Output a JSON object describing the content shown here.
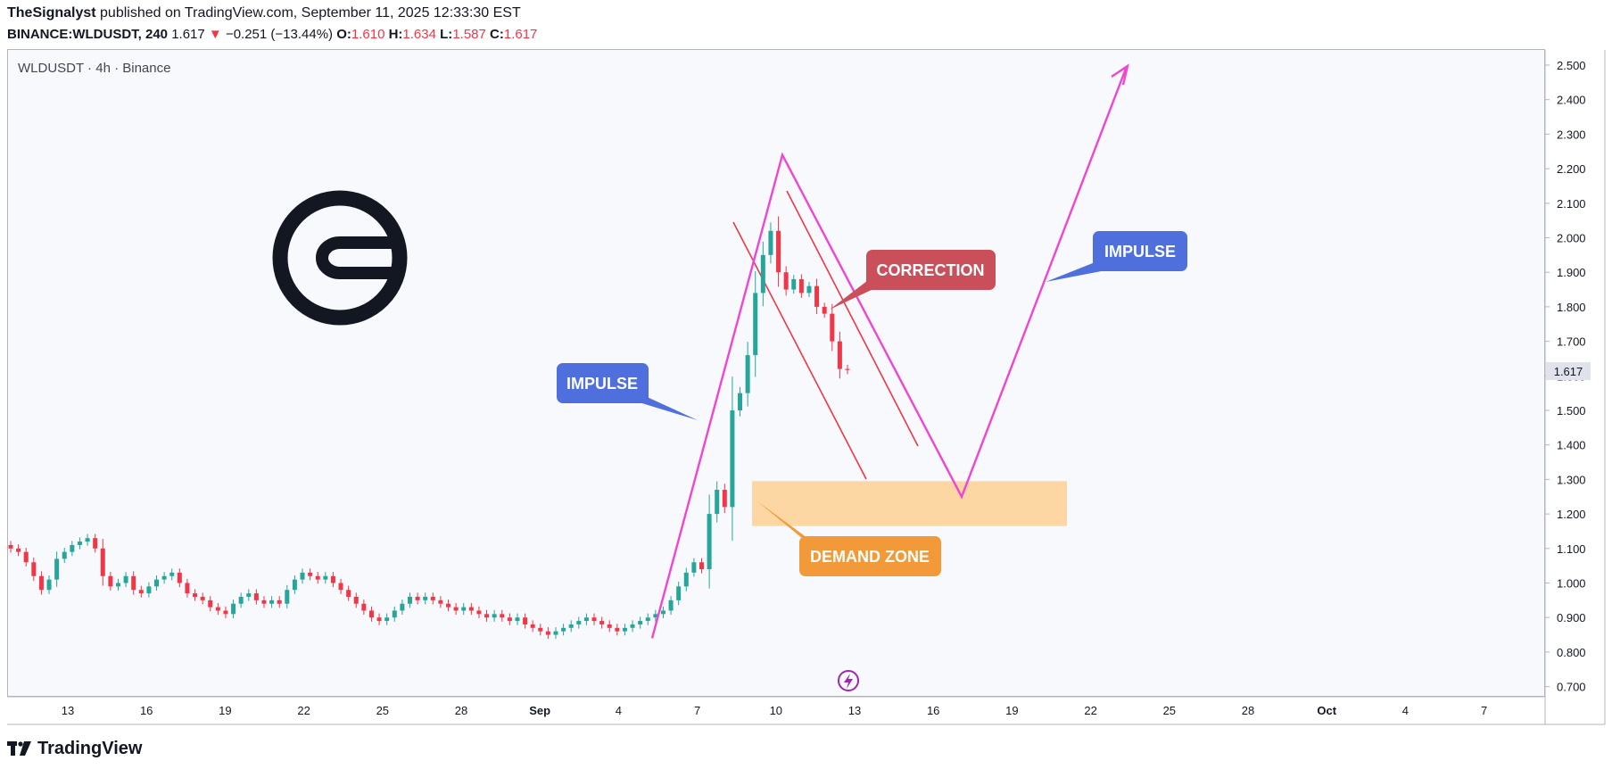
{
  "header": {
    "author": "TheSignalyst",
    "published": "published on TradingView.com, September 11, 2025 12:33:30 EST",
    "symbol_line": "BINANCE:WLDUSDT, 240",
    "last": "1.617",
    "arrow": "▼",
    "change": "−0.251 (−13.44%)",
    "o_label": "O:",
    "o": "1.610",
    "h_label": "H:",
    "h": "1.634",
    "l_label": "L:",
    "l": "1.587",
    "c_label": "C:",
    "c": "1.617"
  },
  "chart_symbol": "WLDUSDT · 4h · Binance",
  "footer": {
    "brand": "TradingView"
  },
  "colors": {
    "up": "#26a69a",
    "down": "#f23645",
    "impulse_line": "#ef45d5",
    "channel": "#f23645",
    "demand_zone": "#fcd39a",
    "impulse_label": "#4f6fdc",
    "correction_label": "#c9505a",
    "demand_label": "#f29a3a"
  },
  "chart_data": {
    "type": "candlestick",
    "ylim": [
      0.7,
      2.52
    ],
    "yticks": [
      "2.500",
      "2.400",
      "2.300",
      "2.200",
      "2.100",
      "2.000",
      "1.900",
      "1.800",
      "1.700",
      "1.600",
      "1.500",
      "1.400",
      "1.300",
      "1.200",
      "1.100",
      "1.000",
      "0.900",
      "0.800",
      "0.700"
    ],
    "xticks": [
      "13",
      "16",
      "19",
      "22",
      "25",
      "28",
      "Sep",
      "4",
      "7",
      "10",
      "13",
      "16",
      "19",
      "22",
      "25",
      "28",
      "Oct",
      "4",
      "7"
    ],
    "last_price_label": "1.617",
    "series": [
      {
        "values": [
          1.1,
          1.09,
          1.06,
          1.02,
          0.98,
          1.01,
          1.07,
          1.09,
          1.11,
          1.12,
          1.13,
          1.1,
          1.02,
          0.99,
          1.0,
          1.02,
          0.98,
          0.97,
          0.99,
          1.01,
          1.02,
          1.03,
          1.0,
          0.97,
          0.96,
          0.95,
          0.93,
          0.92,
          0.91,
          0.94,
          0.96,
          0.97,
          0.95,
          0.94,
          0.95,
          0.94,
          0.98,
          1.01,
          1.03,
          1.02,
          1.01,
          1.02,
          1.0,
          0.98,
          0.96,
          0.94,
          0.92,
          0.9,
          0.89,
          0.9,
          0.92,
          0.94,
          0.96,
          0.95,
          0.96,
          0.95,
          0.94,
          0.93,
          0.92,
          0.93,
          0.92,
          0.91,
          0.9,
          0.91,
          0.9,
          0.89,
          0.9,
          0.88,
          0.87,
          0.86,
          0.85,
          0.86,
          0.87,
          0.88,
          0.89,
          0.9,
          0.89,
          0.88,
          0.87,
          0.86,
          0.87,
          0.88,
          0.89,
          0.9,
          0.91,
          0.92,
          0.95,
          0.99,
          1.03,
          1.06,
          1.04,
          1.2,
          1.27,
          1.22,
          1.5,
          1.55,
          1.66,
          1.84,
          1.95,
          2.02,
          1.9,
          1.85,
          1.88,
          1.84,
          1.86,
          1.8,
          1.78,
          1.7,
          1.62,
          1.617
        ]
      }
    ],
    "annotations": [
      {
        "label": "IMPULSE",
        "kind": "impulse"
      },
      {
        "label": "CORRECTION",
        "kind": "correction"
      },
      {
        "label": "IMPULSE",
        "kind": "impulse"
      },
      {
        "label": "DEMAND ZONE",
        "kind": "demand"
      }
    ],
    "demand_zone": [
      1.165,
      1.295
    ],
    "projection": [
      {
        "date": "Sep 4",
        "price": 0.84
      },
      {
        "date": "Sep 9",
        "price": 2.24
      },
      {
        "date": "Sep 16",
        "price": 1.25
      },
      {
        "date": "Sep 21",
        "price": 2.49
      }
    ]
  }
}
